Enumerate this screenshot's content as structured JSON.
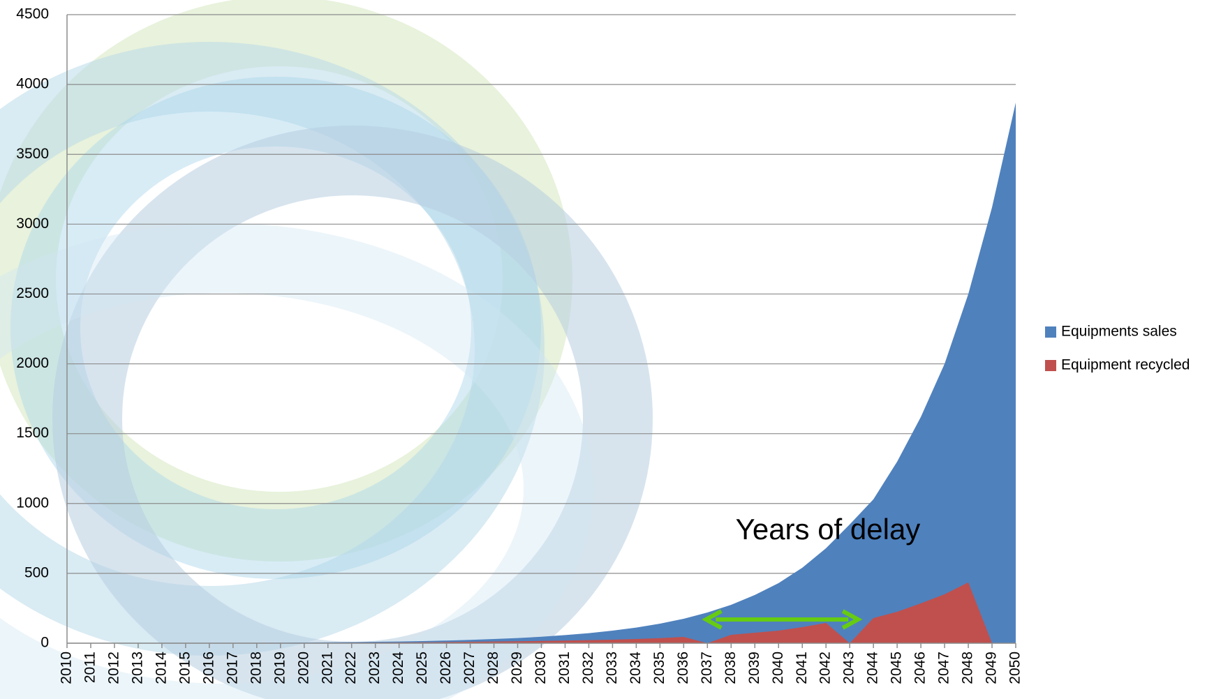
{
  "chart_data": {
    "type": "area",
    "annotation": "Years of delay",
    "categories": [
      "2010",
      "2011",
      "2012",
      "2013",
      "2014",
      "2015",
      "2016",
      "2017",
      "2018",
      "2019",
      "2020",
      "2021",
      "2022",
      "2023",
      "2024",
      "2025",
      "2026",
      "2027",
      "2028",
      "2029",
      "2030",
      "2031",
      "2032",
      "2033",
      "2034",
      "2035",
      "2036",
      "2037",
      "2038",
      "2039",
      "2040",
      "2041",
      "2042",
      "2043",
      "2044",
      "2045",
      "2046",
      "2047",
      "2048",
      "2049",
      "2050"
    ],
    "series": [
      {
        "name": "Equipments sales",
        "color": "#4f81bd",
        "values": [
          0.5,
          0.6,
          0.8,
          1,
          1.3,
          1.6,
          2,
          2.5,
          3,
          4,
          5,
          6,
          8,
          10,
          12,
          15,
          19,
          24,
          30,
          37,
          46,
          58,
          72,
          90,
          112,
          140,
          175,
          220,
          275,
          345,
          430,
          540,
          680,
          850,
          1030,
          1300,
          1620,
          2000,
          2500,
          3120,
          3870
        ]
      },
      {
        "name": "Equipment recycled",
        "color": "#c0504d",
        "values": [
          0,
          0,
          0,
          0,
          0.1,
          0.2,
          0.3,
          0.5,
          0.7,
          1,
          1.5,
          2,
          3,
          4,
          5,
          6,
          8,
          10,
          12,
          14,
          16,
          19,
          22,
          25,
          30,
          36,
          45,
          0,
          60,
          75,
          90,
          115,
          145,
          0,
          180,
          225,
          285,
          350,
          435,
          0,
          0
        ]
      }
    ],
    "ylim": [
      0,
      4500
    ],
    "yticks": [
      0,
      500,
      1000,
      1500,
      2000,
      2500,
      3000,
      3500,
      4000,
      4500
    ],
    "grid": true,
    "legend": "right"
  }
}
